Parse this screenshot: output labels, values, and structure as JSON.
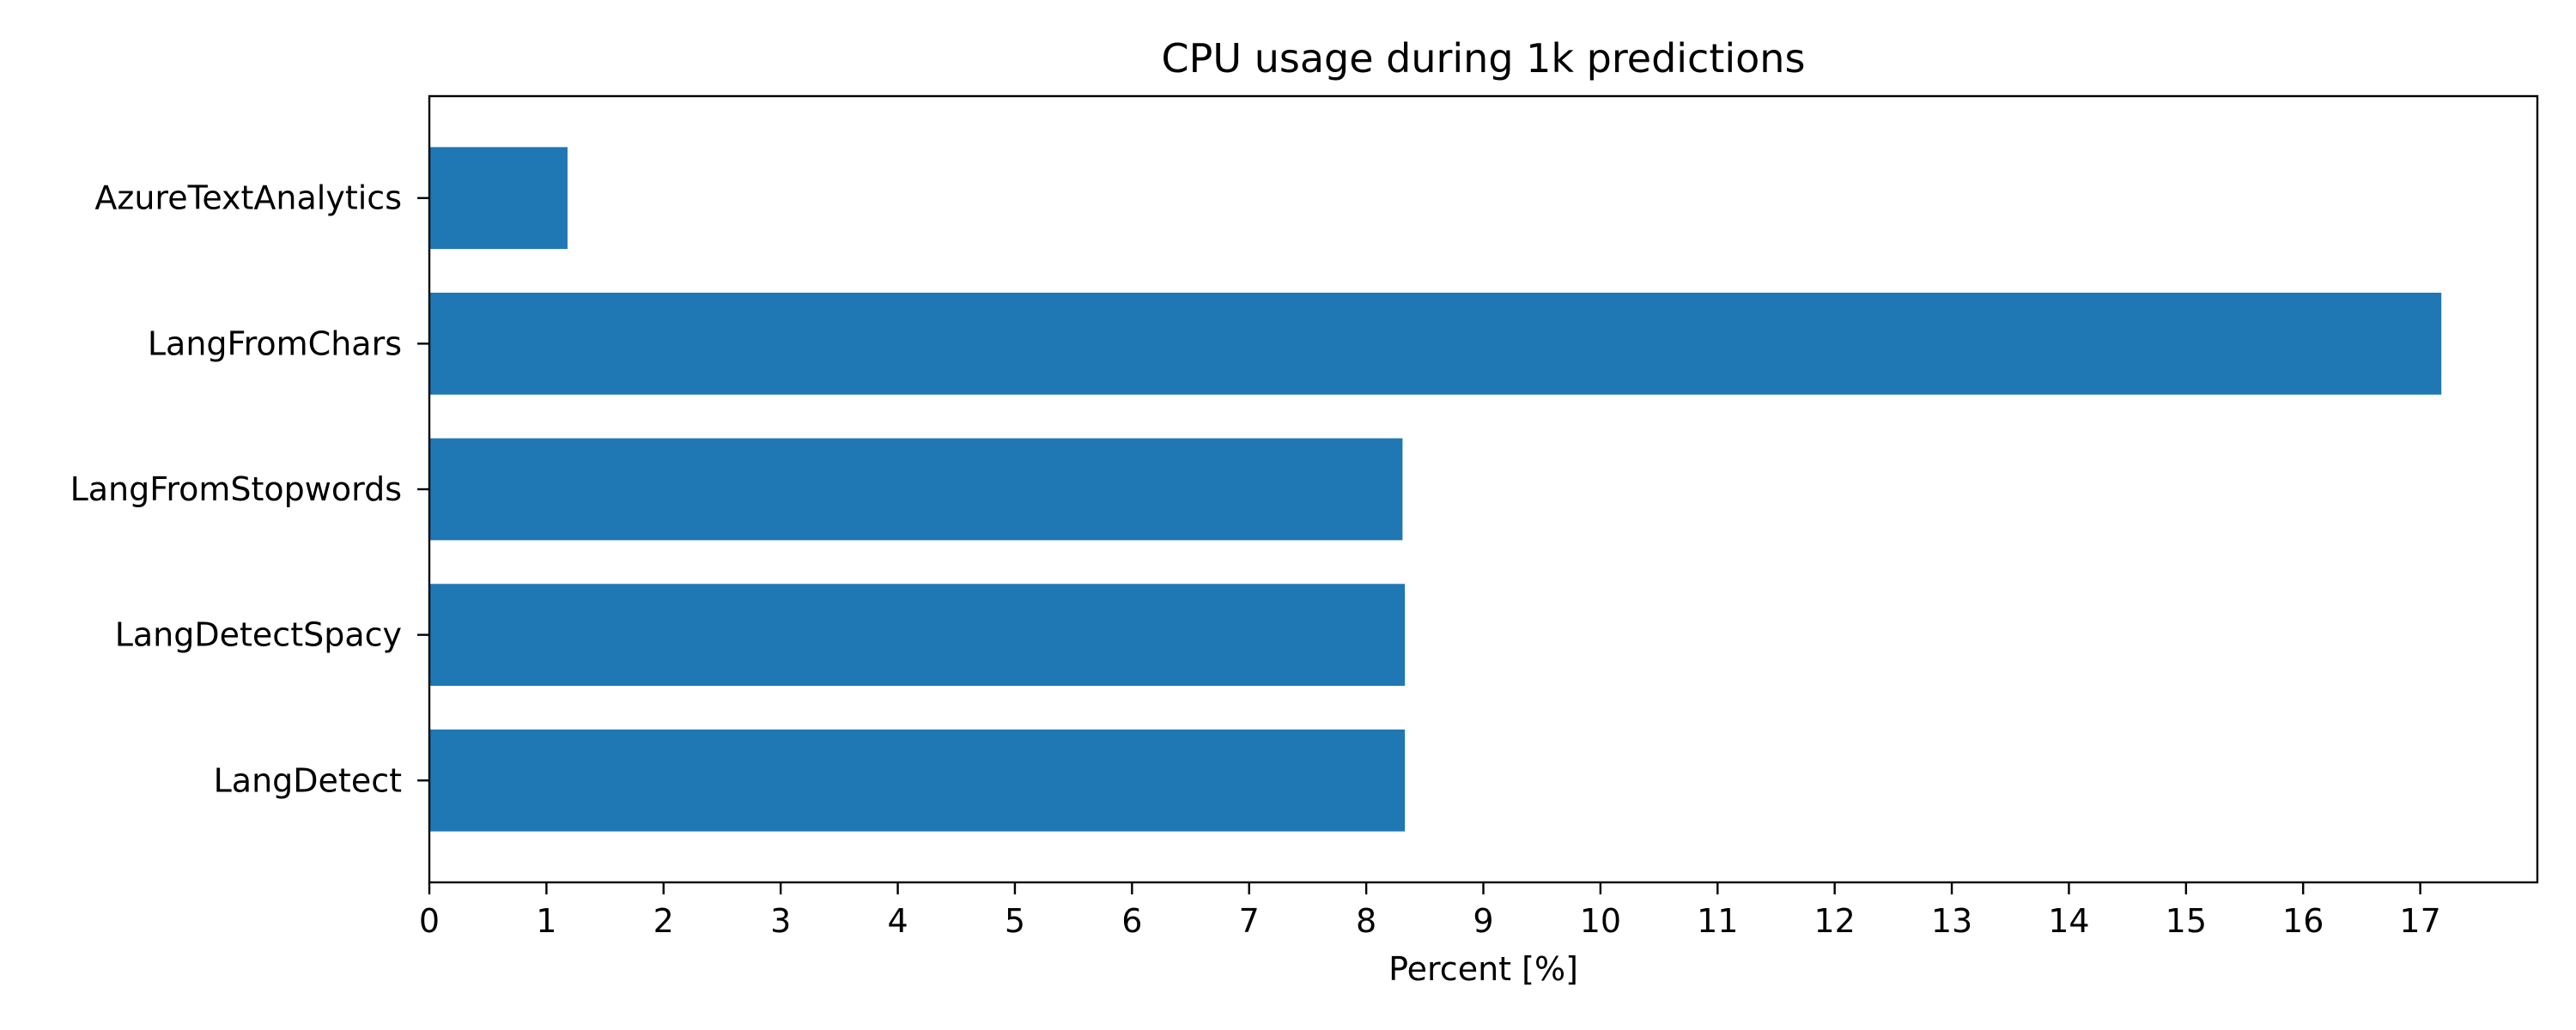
{
  "chart_data": {
    "type": "bar",
    "orientation": "horizontal",
    "title": "CPU usage during 1k predictions",
    "xlabel": "Percent [%]",
    "ylabel": "",
    "categories": [
      "AzureTextAnalytics",
      "LangFromChars",
      "LangFromStopwords",
      "LangDetectSpacy",
      "LangDetect"
    ],
    "values": [
      1.18,
      17.18,
      8.31,
      8.33,
      8.33
    ],
    "xlim": [
      0,
      18
    ],
    "xticks": [
      0,
      1,
      2,
      3,
      4,
      5,
      6,
      7,
      8,
      9,
      10,
      11,
      12,
      13,
      14,
      15,
      16,
      17
    ],
    "bar_color": "#1f77b4",
    "grid": false,
    "legend": "none"
  }
}
